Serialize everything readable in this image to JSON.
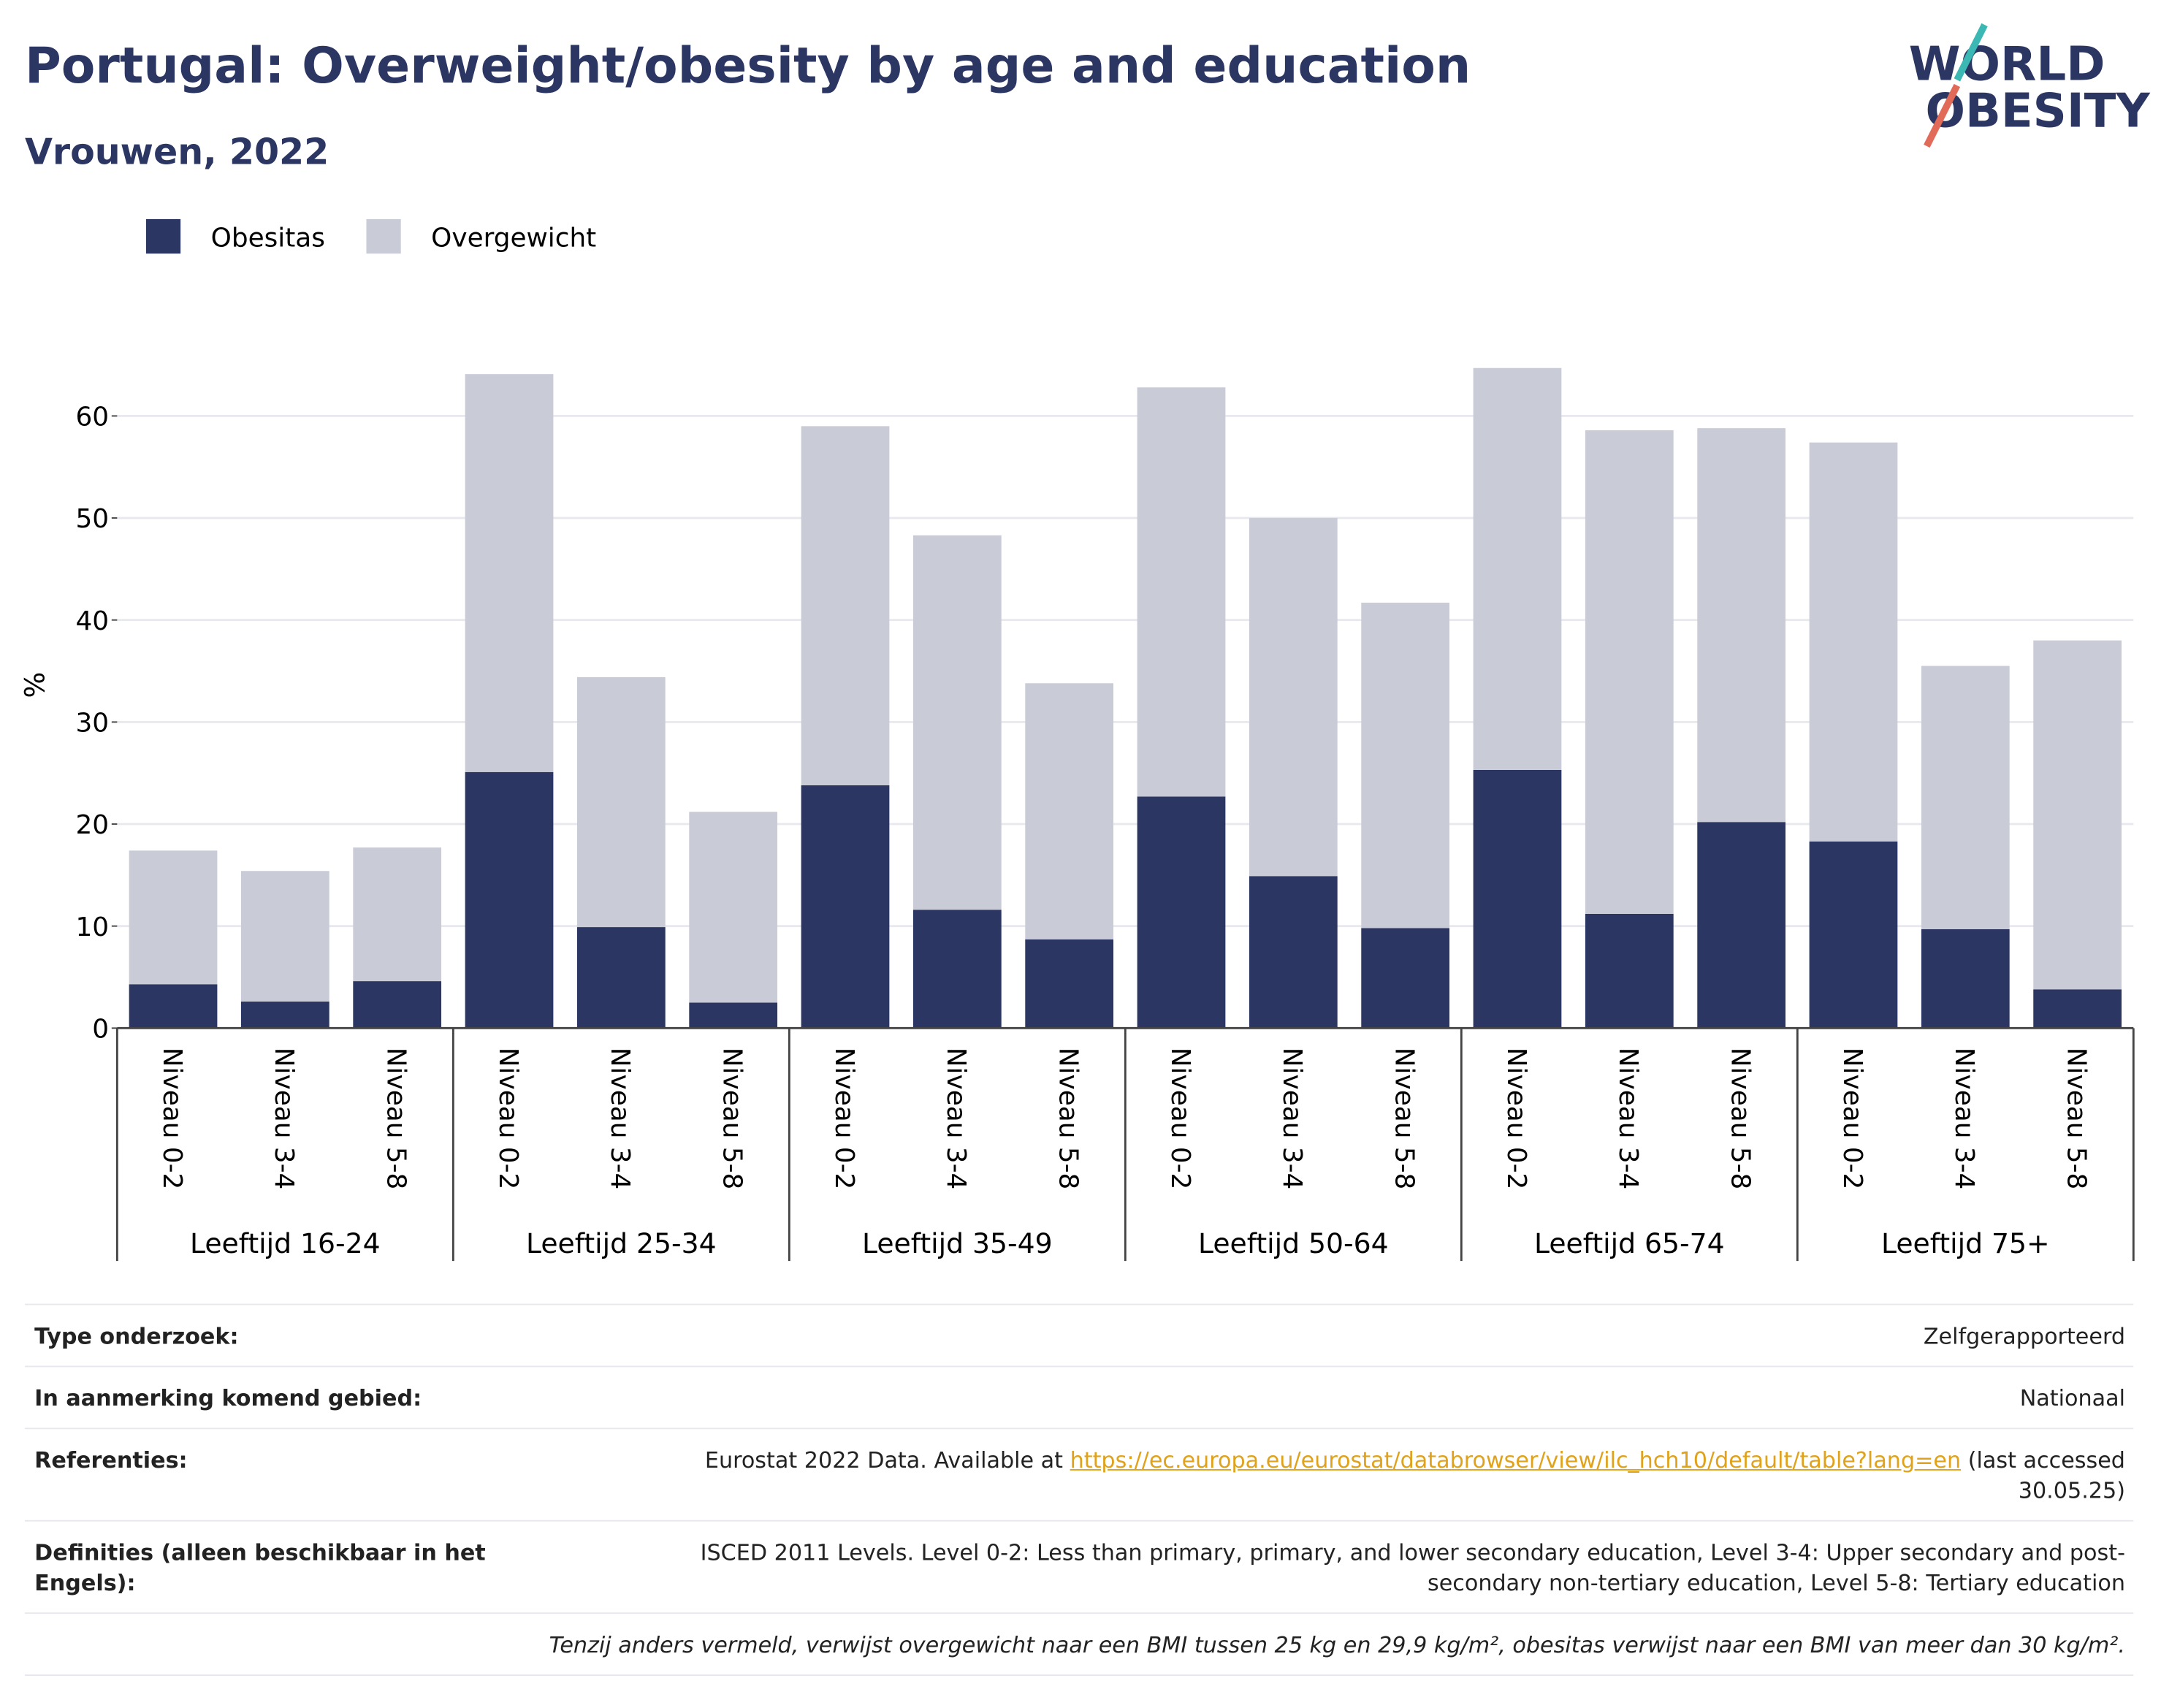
{
  "chart_data": {
    "type": "stacked_bar",
    "title": "Portugal: Overweight/obesity by age and education",
    "subtitle": "Vrouwen, 2022",
    "logo": [
      "WORLD",
      "OBESITY"
    ],
    "y_label": "%",
    "groups": [
      {
        "name": "Leeftijd 16-24",
        "categories": [
          "Niveau 0-2",
          "Niveau 3-4",
          "Niveau 5-8"
        ]
      },
      {
        "name": "Leeftijd 25-34",
        "categories": [
          "Niveau 0-2",
          "Niveau 3-4",
          "Niveau 5-8"
        ]
      },
      {
        "name": "Leeftijd 35-49",
        "categories": [
          "Niveau 0-2",
          "Niveau 3-4",
          "Niveau 5-8"
        ]
      },
      {
        "name": "Leeftijd 50-64",
        "categories": [
          "Niveau 0-2",
          "Niveau 3-4",
          "Niveau 5-8"
        ]
      },
      {
        "name": "Leeftijd 65-74",
        "categories": [
          "Niveau 0-2",
          "Niveau 3-4",
          "Niveau 5-8"
        ]
      },
      {
        "name": "Leeftijd 75+",
        "categories": [
          "Niveau 0-2",
          "Niveau 3-4",
          "Niveau 5-8"
        ]
      }
    ],
    "series": [
      {
        "name": "Obesitas",
        "color": "#2b3663",
        "values": [
          4.3,
          2.6,
          4.6,
          25.1,
          9.9,
          2.5,
          23.8,
          11.6,
          8.7,
          22.7,
          14.9,
          9.8,
          25.3,
          11.2,
          20.2,
          18.3,
          9.7,
          3.8
        ]
      },
      {
        "name": "Overgewicht",
        "color": "#c9cbd7",
        "values": [
          13.1,
          12.8,
          13.1,
          39.0,
          24.5,
          18.7,
          35.2,
          36.7,
          25.1,
          40.1,
          35.1,
          31.9,
          39.4,
          47.4,
          38.6,
          39.1,
          25.8,
          34.2
        ]
      }
    ],
    "ylim": [
      0,
      67
    ],
    "yticks": [
      0,
      10,
      20,
      30,
      40,
      50,
      60
    ],
    "grid": true,
    "legend": "top-left"
  },
  "info": {
    "rows": [
      {
        "label": "Type onderzoek:",
        "value": "Zelfgerapporteerd"
      },
      {
        "label": "In aanmerking komend gebied:",
        "value": "Nationaal"
      },
      {
        "label": "Referenties:",
        "value_before": "Eurostat 2022 Data. Available at",
        "link": "https://ec.europa.eu/eurostat/databrowser/view/ilc_hch10/default/table?lang=en",
        "value_after": "(last accessed 30.05.25)"
      },
      {
        "label": "Definities (alleen beschikbaar in het Engels):",
        "value": "ISCED 2011 Levels. Level 0-2: Less than primary, primary, and lower secondary education, Level 3-4: Upper secondary and post-secondary non-tertiary education, Level 5-8: Tertiary education"
      }
    ],
    "footnote": "Tenzij anders vermeld, verwijst overgewicht naar een BMI tussen 25 kg en 29,9 kg/m², obesitas verwijst naar een BMI van meer dan 30 kg/m²."
  }
}
